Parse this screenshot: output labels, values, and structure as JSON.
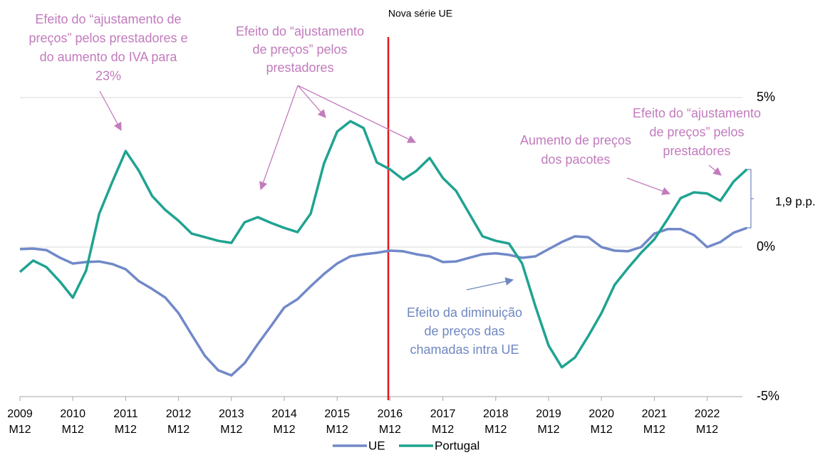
{
  "chart_data": {
    "type": "line",
    "categories": [
      "2009 M12",
      null,
      null,
      null,
      "2010 M12",
      null,
      null,
      null,
      "2011 M12",
      null,
      null,
      null,
      "2012 M12",
      null,
      null,
      null,
      "2013 M12",
      null,
      null,
      null,
      "2014 M12",
      null,
      null,
      null,
      "2015 M12",
      null,
      null,
      null,
      "2016 M12",
      null,
      null,
      null,
      "2017 M12",
      null,
      null,
      null,
      "2018 M12",
      null,
      null,
      null,
      "2019 M12",
      null,
      null,
      null,
      "2020 M12",
      null,
      null,
      null,
      "2021 M12",
      null,
      null,
      null,
      "2022 M12",
      null,
      null,
      null
    ],
    "series": [
      {
        "name": "UE",
        "color": "#7189c8",
        "values": [
          -0.07,
          -0.05,
          -0.1,
          -0.35,
          -0.55,
          -0.5,
          -0.48,
          -0.57,
          -0.74,
          -1.14,
          -1.4,
          -1.69,
          -2.21,
          -2.93,
          -3.64,
          -4.12,
          -4.29,
          -3.88,
          -3.24,
          -2.64,
          -2.02,
          -1.74,
          -1.31,
          -0.9,
          -0.55,
          -0.31,
          -0.24,
          -0.19,
          -0.12,
          -0.14,
          -0.24,
          -0.31,
          -0.5,
          -0.48,
          -0.36,
          -0.24,
          -0.21,
          -0.26,
          -0.36,
          -0.31,
          -0.07,
          0.17,
          0.36,
          0.33,
          0,
          -0.12,
          -0.14,
          0,
          0.45,
          0.6,
          0.6,
          0.4,
          0,
          0.17,
          0.48,
          0.64
        ]
      },
      {
        "name": "Portugal",
        "color": "#1fa391",
        "values": [
          -0.83,
          -0.45,
          -0.67,
          -1.14,
          -1.69,
          -0.79,
          1.12,
          2.19,
          3.21,
          2.55,
          1.71,
          1.24,
          0.88,
          0.45,
          0.33,
          0.21,
          0.14,
          0.83,
          1.0,
          0.81,
          0.64,
          0.5,
          1.12,
          2.79,
          3.86,
          4.21,
          3.98,
          2.83,
          2.6,
          2.26,
          2.55,
          2.98,
          2.31,
          1.88,
          1.12,
          0.36,
          0.21,
          0.12,
          -0.55,
          -1.98,
          -3.29,
          -4.02,
          -3.69,
          -2.98,
          -2.21,
          -1.26,
          -0.71,
          -0.19,
          0.26,
          0.93,
          1.64,
          1.83,
          1.79,
          1.55,
          2.19,
          2.6
        ]
      }
    ],
    "ylim": [
      -5,
      5
    ],
    "yticks": [
      {
        "value": -5,
        "label": "-5%"
      },
      {
        "value": 0,
        "label": "0%"
      },
      {
        "value": 5,
        "label": "5%"
      }
    ],
    "grid": true,
    "vline_label": "Nova série UE",
    "bracket_label": "1,9 p.p.",
    "annotations": [
      {
        "color": "#c27bbd",
        "lines": [
          "Efeito do “ajustamento de",
          "preços” pelos prestadores e",
          "do aumento do IVA para",
          "23%"
        ]
      },
      {
        "color": "#c27bbd",
        "lines": [
          "Efeito do “ajustamento",
          "de preços” pelos",
          "prestadores"
        ]
      },
      {
        "color": "#c27bbd",
        "lines": [
          "Aumento de preços",
          "dos pacotes"
        ]
      },
      {
        "color": "#c27bbd",
        "lines": [
          "Efeito do “ajustamento",
          "de preços” pelos",
          "prestadores"
        ]
      },
      {
        "color": "#6f87c2",
        "lines": [
          "Efeito da diminuição",
          "de preços das",
          "chamadas intra UE"
        ]
      }
    ]
  }
}
